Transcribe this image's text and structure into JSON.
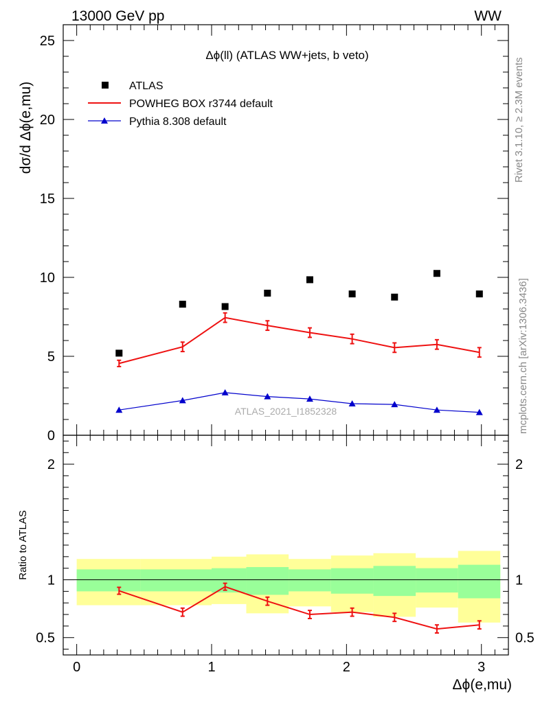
{
  "header": {
    "left": "13000 GeV pp",
    "right": "WW"
  },
  "side_labels": {
    "rivet": "Rivet 3.1.10, ≥ 2.3M events",
    "mcplots": "mcplots.cern.ch [arXiv:1306.3436]"
  },
  "watermark": "ATLAS_2021_I1852328",
  "chart_data": [
    {
      "type": "scatter",
      "title": "Δϕ(ll) (ATLAS WW+jets, b veto)",
      "xlabel": "Δϕ(e,mu)",
      "ylabel": "dσ/d Δϕ(e,mu)",
      "xlim": [
        -0.1,
        3.2
      ],
      "ylim": [
        0,
        26
      ],
      "yticks": [
        0,
        5,
        10,
        15,
        20,
        25
      ],
      "ytick_labels": [
        "0",
        "5",
        "10",
        "15",
        "20",
        "25"
      ],
      "legend_placement": "top-left",
      "x": [
        0.314,
        0.785,
        1.1,
        1.414,
        1.728,
        2.042,
        2.356,
        2.67,
        2.985
      ],
      "series": [
        {
          "name": "ATLAS",
          "color": "#000000",
          "marker": "square",
          "values": [
            5.2,
            8.3,
            8.15,
            9.0,
            9.85,
            8.95,
            8.75,
            10.25,
            8.95
          ]
        },
        {
          "name": "POWHEG BOX r3744 default",
          "color": "#ee1111",
          "marker": "line-errorbar",
          "values": [
            4.55,
            5.6,
            7.45,
            6.95,
            6.5,
            6.1,
            5.55,
            5.75,
            5.25
          ],
          "errors": [
            0.2,
            0.3,
            0.3,
            0.3,
            0.3,
            0.3,
            0.3,
            0.3,
            0.3
          ]
        },
        {
          "name": "Pythia 8.308 default",
          "color": "#0000cc",
          "marker": "triangle",
          "values": [
            1.6,
            2.2,
            2.7,
            2.45,
            2.3,
            2.0,
            1.95,
            1.6,
            1.45
          ]
        }
      ]
    },
    {
      "type": "line",
      "ylabel": "Ratio to ATLAS",
      "xlabel": "Δϕ(e,mu)",
      "xlim": [
        -0.1,
        3.2
      ],
      "ylim": [
        0.35,
        2.25
      ],
      "yticks": [
        0.5,
        1,
        2
      ],
      "ytick_labels": [
        "0.5",
        "1",
        "2"
      ],
      "xticks": [
        0,
        1,
        2,
        3
      ],
      "xtick_labels": [
        "0",
        "1",
        "2",
        "3"
      ],
      "reference_line": 1,
      "bands": {
        "bin_edges": [
          0,
          0.471,
          1.0,
          1.257,
          1.571,
          1.885,
          2.199,
          2.513,
          2.827,
          3.14
        ],
        "yellow": {
          "color": "#ffff99",
          "low": [
            0.78,
            0.78,
            0.79,
            0.71,
            0.77,
            0.72,
            0.68,
            0.76,
            0.63
          ],
          "high": [
            1.18,
            1.18,
            1.2,
            1.22,
            1.18,
            1.21,
            1.23,
            1.19,
            1.25
          ]
        },
        "green": {
          "color": "#99ff99",
          "low": [
            0.9,
            0.9,
            0.89,
            0.87,
            0.9,
            0.88,
            0.86,
            0.89,
            0.84
          ],
          "high": [
            1.09,
            1.09,
            1.1,
            1.11,
            1.09,
            1.1,
            1.12,
            1.1,
            1.13
          ]
        }
      },
      "series": [
        {
          "name": "POWHEG BOX r3744 default",
          "color": "#ee1111",
          "values": [
            0.905,
            0.72,
            0.94,
            0.815,
            0.7,
            0.72,
            0.675,
            0.575,
            0.61
          ],
          "errors": [
            0.03,
            0.035,
            0.03,
            0.035,
            0.035,
            0.035,
            0.035,
            0.035,
            0.035
          ]
        }
      ]
    }
  ]
}
